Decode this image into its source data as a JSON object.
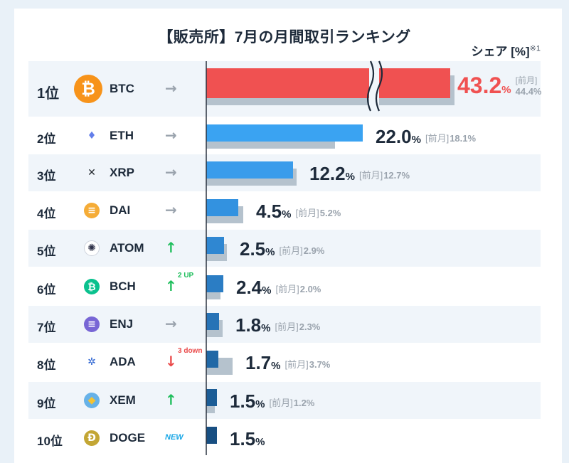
{
  "title": "【販売所】7月の月間取引ランキング",
  "share_label": "シェア [%]",
  "share_note": "※1",
  "prev_label": "[前月]",
  "colors": {
    "btc_bar": "#f05151",
    "prev_bar": "#b5c2cd",
    "up": "#1fbe5c",
    "down": "#ea4a4a",
    "same": "#9aa3ad",
    "new": "#1aa7e6"
  },
  "chart_data": {
    "type": "bar",
    "orientation": "horizontal",
    "title": "【販売所】7月の月間取引ランキング",
    "value_unit": "%",
    "categories": [
      "BTC",
      "ETH",
      "XRP",
      "DAI",
      "ATOM",
      "BCH",
      "ENJ",
      "ADA",
      "XEM",
      "DOGE"
    ],
    "series": [
      {
        "name": "7月",
        "values": [
          43.2,
          22.0,
          12.2,
          4.5,
          2.5,
          2.4,
          1.8,
          1.7,
          1.5,
          1.5
        ]
      },
      {
        "name": "[前月]",
        "values": [
          44.4,
          18.1,
          12.7,
          5.2,
          2.9,
          2.0,
          2.3,
          3.7,
          1.2,
          null
        ]
      }
    ],
    "axis_break_on_first": true
  },
  "rows": [
    {
      "rank": "1位",
      "symbol": "BTC",
      "icon": "bitcoin-icon",
      "trend": "same",
      "trend_note": "",
      "value": "43.2",
      "prev": "44.4%"
    },
    {
      "rank": "2位",
      "symbol": "ETH",
      "icon": "ethereum-icon",
      "trend": "same",
      "trend_note": "",
      "value": "22.0",
      "prev": "18.1%"
    },
    {
      "rank": "3位",
      "symbol": "XRP",
      "icon": "xrp-icon",
      "trend": "same",
      "trend_note": "",
      "value": "12.2",
      "prev": " 12.7%"
    },
    {
      "rank": "4位",
      "symbol": "DAI",
      "icon": "dai-icon",
      "trend": "same",
      "trend_note": "",
      "value": "4.5",
      "prev": "5.2%"
    },
    {
      "rank": "5位",
      "symbol": "ATOM",
      "icon": "cosmos-atom-icon",
      "trend": "up",
      "trend_note": "",
      "value": "2.5",
      "prev": "2.9%"
    },
    {
      "rank": "6位",
      "symbol": "BCH",
      "icon": "bitcoin-cash-icon",
      "trend": "up",
      "trend_note": "2 UP",
      "value": "2.4",
      "prev": "2.0%"
    },
    {
      "rank": "7位",
      "symbol": "ENJ",
      "icon": "enjin-icon",
      "trend": "same",
      "trend_note": "",
      "value": "1.8",
      "prev": "2.3%"
    },
    {
      "rank": "8位",
      "symbol": "ADA",
      "icon": "cardano-icon",
      "trend": "down",
      "trend_note": "3 down",
      "value": "1.7",
      "prev": "3.7%"
    },
    {
      "rank": "9位",
      "symbol": "XEM",
      "icon": "nem-icon",
      "trend": "up",
      "trend_note": "",
      "value": "1.5",
      "prev": "1.2%"
    },
    {
      "rank": "10位",
      "symbol": "DOGE",
      "icon": "dogecoin-icon",
      "trend": "new",
      "trend_note": "NEW",
      "value": "1.5",
      "prev": ""
    }
  ],
  "pct": "%"
}
